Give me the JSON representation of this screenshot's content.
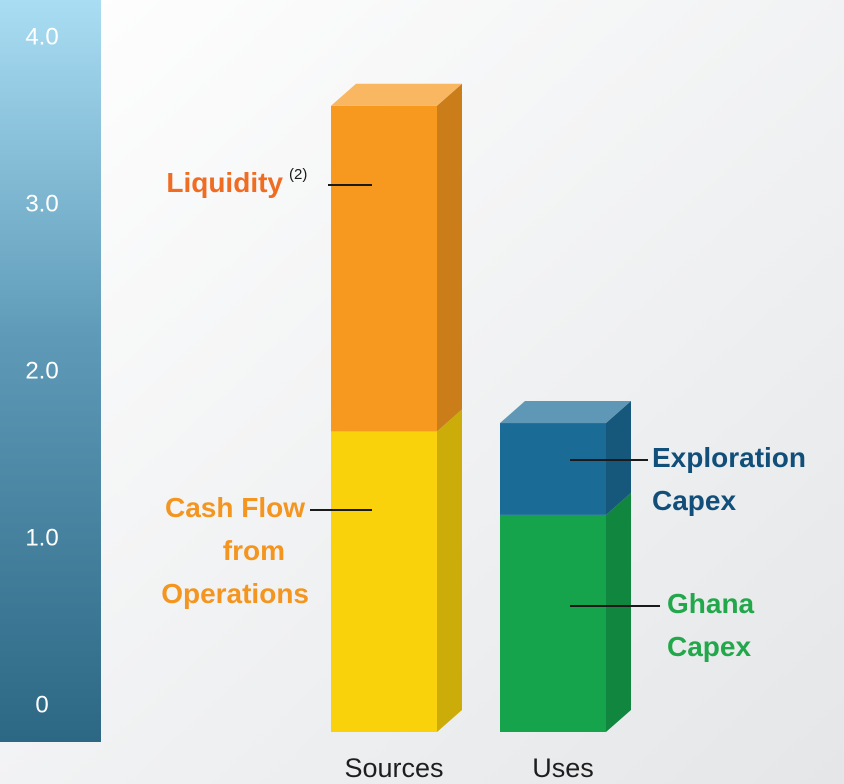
{
  "chart_data": {
    "type": "stacked-bar-3d",
    "categories": [
      "Sources",
      "Uses"
    ],
    "series": [
      {
        "name": "Cash Flow from Operations",
        "color": "#f9d20b",
        "values": [
          1.8,
          null
        ]
      },
      {
        "name": "Liquidity",
        "footnote_marker": "(2)",
        "color": "#f7981f",
        "values": [
          1.95,
          null
        ]
      },
      {
        "name": "Ghana Capex",
        "color": "#15a44c",
        "values": [
          null,
          1.3
        ]
      },
      {
        "name": "Exploration Capex",
        "color": "#1a6b96",
        "values": [
          null,
          0.55
        ]
      }
    ],
    "label_colors": [
      "#f4951f",
      "#ef6c22",
      "#22a84a",
      "#114f7a"
    ],
    "ylim": [
      0,
      4
    ],
    "yticks": [
      0,
      {
        "value": 1,
        "label": "1.0"
      },
      {
        "value": 2,
        "label": "2.0"
      },
      {
        "value": 3,
        "label": "3.0"
      },
      {
        "value": 4,
        "label": "4.0"
      }
    ]
  }
}
